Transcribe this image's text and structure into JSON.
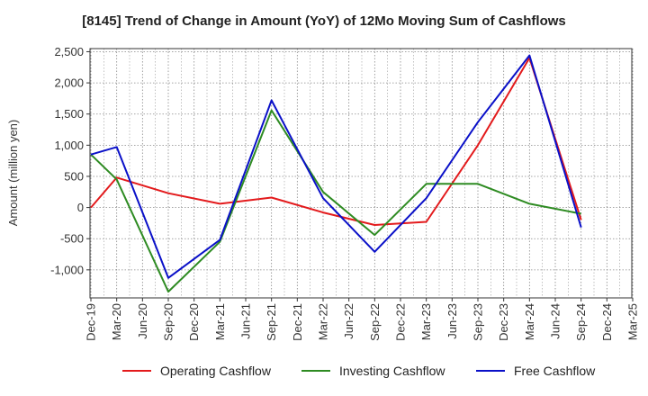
{
  "chart_data": {
    "type": "line",
    "title": "[8145]  Trend of Change in Amount (YoY) of 12Mo Moving Sum of Cashflows",
    "xlabel": "",
    "ylabel": "Amount (million yen)",
    "ylim": [
      -1450,
      2550
    ],
    "y_ticks": [
      2500,
      2000,
      1500,
      1000,
      500,
      0,
      -500,
      -1000
    ],
    "y_tick_labels": [
      "2,500",
      "2,000",
      "1,500",
      "1,000",
      "500",
      "0",
      "-500",
      "-1,000"
    ],
    "categories": [
      "Dec-19",
      "Mar-20",
      "Jun-20",
      "Sep-20",
      "Dec-20",
      "Mar-21",
      "Jun-21",
      "Sep-21",
      "Dec-21",
      "Mar-22",
      "Jun-22",
      "Sep-22",
      "Dec-22",
      "Mar-23",
      "Jun-23",
      "Sep-23",
      "Dec-23",
      "Mar-24",
      "Jun-24",
      "Sep-24",
      "Dec-24",
      "Mar-25"
    ],
    "grid": true,
    "legend_position": "bottom",
    "series": [
      {
        "name": "Operating Cashflow",
        "color": "#e31a1c",
        "values": [
          0,
          480,
          null,
          230,
          null,
          60,
          null,
          160,
          null,
          -80,
          null,
          -280,
          null,
          -230,
          null,
          1000,
          null,
          2400,
          null,
          -200,
          null,
          null
        ]
      },
      {
        "name": "Investing Cashflow",
        "color": "#2e8b22",
        "values": [
          850,
          450,
          null,
          -1350,
          null,
          -550,
          null,
          1560,
          null,
          250,
          null,
          -440,
          null,
          380,
          null,
          380,
          null,
          60,
          null,
          -100,
          null,
          null
        ]
      },
      {
        "name": "Free Cashflow",
        "color": "#0a10c8",
        "values": [
          850,
          970,
          null,
          -1130,
          null,
          -520,
          null,
          1720,
          null,
          150,
          null,
          -710,
          null,
          150,
          null,
          1370,
          null,
          2440,
          null,
          -320,
          null,
          null
        ]
      }
    ]
  }
}
